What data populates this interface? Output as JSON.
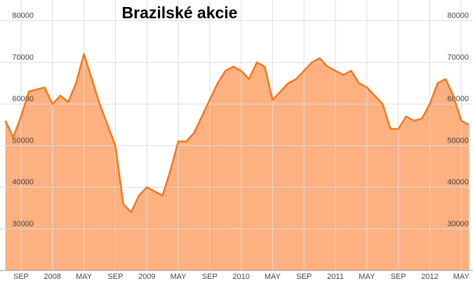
{
  "chart_data": {
    "type": "area",
    "title": "Brazilské akcie",
    "categories": [
      null,
      null,
      "SEP",
      null,
      null,
      null,
      "2008",
      null,
      null,
      null,
      "MAY",
      null,
      null,
      null,
      "SEP",
      null,
      null,
      null,
      "2009",
      null,
      null,
      null,
      "MAY",
      null,
      null,
      null,
      "SEP",
      null,
      null,
      null,
      "2010",
      null,
      null,
      null,
      "MAY",
      null,
      null,
      null,
      "SEP",
      null,
      null,
      null,
      "2011",
      null,
      null,
      null,
      "MAY",
      null,
      null,
      null,
      "SEP",
      null,
      null,
      null,
      "2012",
      null,
      null,
      null,
      "MAY",
      null
    ],
    "values": [
      56000,
      52000,
      57000,
      63000,
      63500,
      64000,
      60000,
      62000,
      60500,
      65000,
      72000,
      66000,
      60000,
      55000,
      50000,
      36000,
      34000,
      38000,
      40000,
      39000,
      38000,
      44000,
      51000,
      51000,
      53000,
      57000,
      61000,
      65000,
      68000,
      69000,
      68000,
      66000,
      70000,
      69000,
      61000,
      63000,
      65000,
      66000,
      68000,
      70000,
      71000,
      69000,
      68000,
      67000,
      68000,
      65000,
      64000,
      62000,
      60000,
      54000,
      54000,
      57000,
      56000,
      56500,
      60000,
      65000,
      66000,
      62000,
      56000,
      55000
    ],
    "color": "#f07820",
    "fill": "#fdb080",
    "ylim": [
      20000,
      85000
    ],
    "yticks": [
      30000,
      40000,
      50000,
      60000,
      70000,
      80000
    ],
    "grid": true
  }
}
